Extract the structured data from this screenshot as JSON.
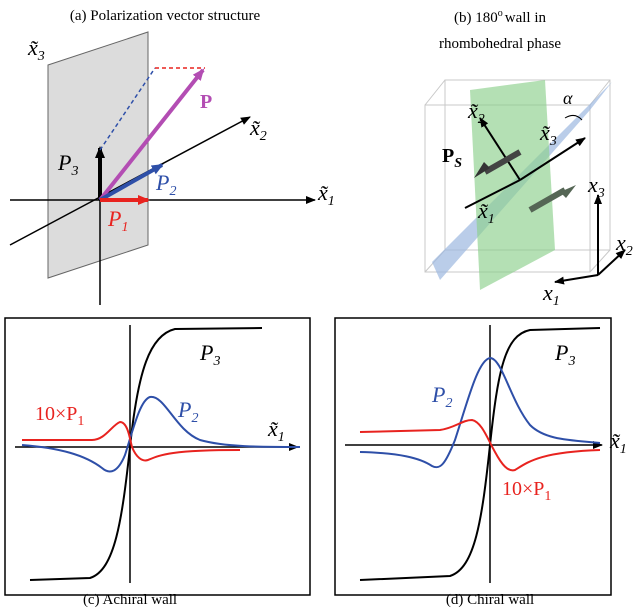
{
  "panel_a": {
    "caption": "(a) Polarization vector structure",
    "x3": {
      "base": "x̃",
      "sub": "3"
    },
    "x2": {
      "base": "x̃",
      "sub": "2"
    },
    "x1": {
      "base": "x̃",
      "sub": "1"
    },
    "P": "P",
    "P3": {
      "base": "P",
      "sub": "3"
    },
    "P2": {
      "base": "P",
      "sub": "2"
    },
    "P1": {
      "base": "P",
      "sub": "1"
    }
  },
  "panel_b": {
    "caption_line1": "(b) 180",
    "caption_degree": "o",
    "caption_line1_end": "wall in",
    "caption_line2": "rhombohedral phase",
    "tx2": {
      "base": "x̃",
      "sub": "2"
    },
    "tx3": {
      "base": "x̃",
      "sub": "3"
    },
    "tx1": {
      "base": "x̃",
      "sub": "1"
    },
    "alpha": "α",
    "Ps": {
      "base": "P",
      "sub": "S"
    },
    "x3": {
      "base": "x",
      "sub": "3"
    },
    "x2": {
      "base": "x",
      "sub": "2"
    },
    "x1": {
      "base": "x",
      "sub": "1"
    }
  },
  "panel_c": {
    "caption": "(c) Achiral wall",
    "P3": {
      "base": "P",
      "sub": "3"
    },
    "P1": {
      "base": "10×P",
      "sub": "1"
    },
    "P2": {
      "base": "P",
      "sub": "2"
    },
    "x1": {
      "base": "x̃",
      "sub": "1"
    }
  },
  "panel_d": {
    "caption": "(d) Chiral wall",
    "P3": {
      "base": "P",
      "sub": "3"
    },
    "P2": {
      "base": "P",
      "sub": "2"
    },
    "P1": {
      "base": "10×P",
      "sub": "1"
    },
    "x1": {
      "base": "x̃",
      "sub": "1"
    }
  }
}
